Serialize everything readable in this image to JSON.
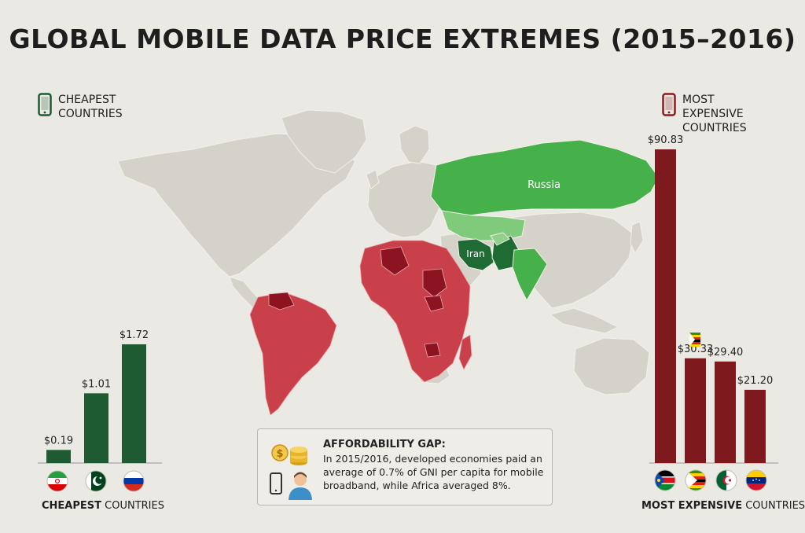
{
  "title": "GLOBAL MOBILE DATA PRICE EXTREMES (2015–2016)",
  "legend": {
    "cheapest": {
      "line1": "CHEAPEST",
      "line2": "COUNTRIES",
      "icon": "phone-icon",
      "color": "#1e5a32"
    },
    "expensive": {
      "line1": "MOST EXPENSIVE",
      "line2": "COUNTRIES",
      "icon": "phone-icon",
      "color": "#8b1a1e"
    }
  },
  "map_labels": {
    "russia": "Russia",
    "iran": "Iran"
  },
  "colors": {
    "cheap_bar": "#1e5a32",
    "expensive_bar": "#7e1a1e",
    "map_land": "#d5d2ca",
    "map_green": "#46b04a",
    "map_green_dark": "#1f6b34",
    "map_red": "#c9404a",
    "map_red_dark": "#8c1420"
  },
  "chart_data": [
    {
      "type": "bar",
      "categories": [
        "Iran",
        "Pakistan",
        "Russia"
      ],
      "values": [
        0.19,
        1.01,
        1.72
      ],
      "value_labels": [
        "$0.19",
        "$1.01",
        "$1.72"
      ],
      "ylim": [
        0,
        1.72
      ],
      "xlabel": "",
      "ylabel": "",
      "caption_bold": "CHEAPEST",
      "caption_rest": " COUNTRIES",
      "flags": [
        "flag-iran",
        "flag-pakistan",
        "flag-russia"
      ]
    },
    {
      "type": "bar",
      "categories": [
        "South Sudan",
        "Zimbabwe",
        "Algeria",
        "Venezuela"
      ],
      "values": [
        90.83,
        30.33,
        29.4,
        21.2
      ],
      "value_labels": [
        "$90.83",
        "$30.33",
        "$29.40",
        "$21.20"
      ],
      "ylim": [
        0,
        90.83
      ],
      "xlabel": "",
      "ylabel": "",
      "caption_bold": "MOST EXPENSIVE",
      "caption_rest": " COUNTRIES",
      "flags": [
        "flag-south-sudan",
        "flag-zimbabwe",
        "flag-algeria",
        "flag-venezuela"
      ]
    }
  ],
  "info": {
    "heading": "AFFORDABILITY GAP:",
    "body": "In 2015/2016, developed economies paid an average of 0.7% of GNI per capita for mobile broadband, while Africa averaged 8%.",
    "icons": [
      "coins-icon",
      "phone-icon",
      "person-icon"
    ]
  }
}
